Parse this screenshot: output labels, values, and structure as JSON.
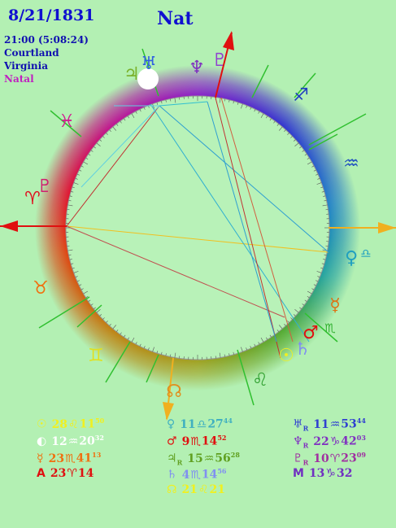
{
  "header": {
    "date": "8/21/1831",
    "title": "Nat",
    "time": "21:00 (5:08:24)",
    "place1": "Courtland",
    "place2": "Virginia",
    "chart_kind": "Natal"
  },
  "wheel_glyphs": [
    {
      "glyph": "♃",
      "color": "#7ab02a"
    },
    {
      "glyph": "♅",
      "color": "#3060e0"
    },
    {
      "glyph": "♆",
      "color": "#8030c0"
    },
    {
      "glyph": "♇",
      "color": "#9040d0"
    },
    {
      "glyph": "♐",
      "color": "#2040c0"
    },
    {
      "glyph": "♒",
      "color": "#2050c0"
    },
    {
      "glyph": "♀",
      "color": "#20a0c0"
    },
    {
      "glyph": "♎",
      "color": "#20a0c0"
    },
    {
      "glyph": "☿",
      "color": "#e07010"
    },
    {
      "glyph": "♂",
      "color": "#e01010"
    },
    {
      "glyph": "♏",
      "color": "#30b030"
    },
    {
      "glyph": "♄",
      "color": "#8090f0"
    },
    {
      "glyph": "☉",
      "color": "#f0f020"
    },
    {
      "glyph": "♌",
      "color": "#30a030"
    },
    {
      "glyph": "☊",
      "color": "#e09020"
    },
    {
      "glyph": "♊",
      "color": "#e0e020"
    },
    {
      "glyph": "♉",
      "color": "#f07010"
    },
    {
      "glyph": "♈",
      "color": "#e01020"
    },
    {
      "glyph": "♇",
      "color": "#d02070"
    },
    {
      "glyph": "♓",
      "color": "#d02090"
    }
  ],
  "positions": [
    [
      {
        "symbol": "☉",
        "deg": "28",
        "sign": "♌",
        "min": "11",
        "sec": "50",
        "color": "#f0f020"
      },
      {
        "symbol": "◐",
        "deg": "12",
        "sign": "♒",
        "min": "20",
        "sec": "32",
        "color": "#ffffff"
      },
      {
        "symbol": "☿",
        "deg": "23",
        "sign": "♏",
        "min": "41",
        "sec": "13",
        "color": "#f07010"
      },
      {
        "symbol": "A",
        "deg": "23",
        "sign": "♈",
        "min": "14",
        "color": "#e01010"
      }
    ],
    [
      {
        "symbol": "♀",
        "deg": "11",
        "sign": "♎",
        "min": "27",
        "sec": "44",
        "color": "#40b0c0"
      },
      {
        "symbol": "♂",
        "deg": "9",
        "sign": "♏",
        "min": "14",
        "sec": "52",
        "color": "#e01010"
      },
      {
        "symbol": "♃",
        "retro": "R",
        "deg": "15",
        "sign": "♒",
        "min": "56",
        "sec": "28",
        "color": "#60a020"
      },
      {
        "symbol": "♄",
        "deg": "4",
        "sign": "♏",
        "min": "14",
        "sec": "56",
        "color": "#8090f0"
      },
      {
        "symbol": "☊",
        "deg": "21",
        "sign": "♌",
        "min": "21",
        "color": "#f0f020"
      }
    ],
    [
      {
        "symbol": "♅",
        "retro": "R",
        "deg": "11",
        "sign": "♒",
        "min": "53",
        "sec": "44",
        "color": "#3040d0"
      },
      {
        "symbol": "♆",
        "retro": "R",
        "deg": "22",
        "sign": "♑",
        "min": "42",
        "sec": "03",
        "color": "#8030c0"
      },
      {
        "symbol": "♇",
        "retro": "R",
        "deg": "10",
        "sign": "♈",
        "min": "23",
        "sec": "09",
        "color": "#a030a0"
      },
      {
        "symbol": "M",
        "deg": "13",
        "sign": "♑",
        "min": "32",
        "color": "#7030c0"
      }
    ]
  ]
}
